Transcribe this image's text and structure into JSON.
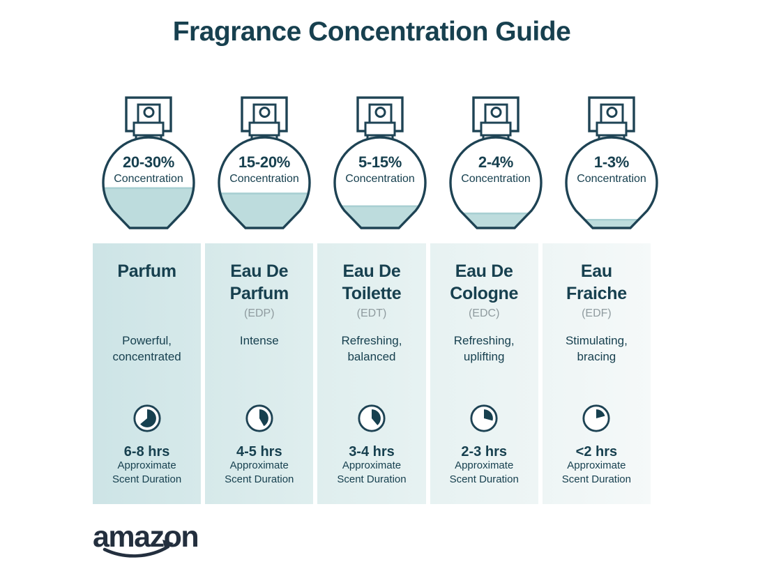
{
  "title": "Fragrance Concentration Guide",
  "logo": {
    "text": "amazon"
  },
  "labels": {
    "concentration": "Concentration",
    "duration": "Approximate Scent Duration"
  },
  "colors": {
    "ink": "#17404f",
    "stroke_ink": "#1e4354",
    "liquid": "#bddcdd",
    "liquid_surface": "#a8cfd2",
    "abbr_gray": "#8f9b9f",
    "logo_ink": "#232f3e",
    "column_gradients": [
      [
        "#cde4e6",
        "#d6e9ea"
      ],
      [
        "#d6e9ea",
        "#dfeeee"
      ],
      [
        "#dfeeee",
        "#e7f2f2"
      ],
      [
        "#e7f2f2",
        "#eef5f5"
      ],
      [
        "#eef5f5",
        "#f5f9f9"
      ]
    ]
  },
  "columns": [
    {
      "concentration": "20-30%",
      "fill_percent": 45,
      "name": "Parfum",
      "abbr": "",
      "description": "Powerful, concentrated",
      "clock_angle": 230,
      "duration": "6-8 hrs"
    },
    {
      "concentration": "15-20%",
      "fill_percent": 39,
      "name": "Eau De Parfum",
      "abbr": "(EDP)",
      "description": "Intense",
      "clock_angle": 150,
      "duration": "4-5 hrs"
    },
    {
      "concentration": "5-15%",
      "fill_percent": 25,
      "name": "Eau De Toilette",
      "abbr": "(EDT)",
      "description": "Refreshing, balanced",
      "clock_angle": 140,
      "duration": "3-4 hrs"
    },
    {
      "concentration": "2-4%",
      "fill_percent": 17,
      "name": "Eau De Cologne",
      "abbr": "(EDC)",
      "description": "Refreshing, uplifting",
      "clock_angle": 105,
      "duration": "2-3 hrs"
    },
    {
      "concentration": "1-3%",
      "fill_percent": 10,
      "name": "Eau Fraiche",
      "abbr": "(EDF)",
      "description": "Stimulating, bracing",
      "clock_angle": 75,
      "duration": "<2 hrs"
    }
  ]
}
